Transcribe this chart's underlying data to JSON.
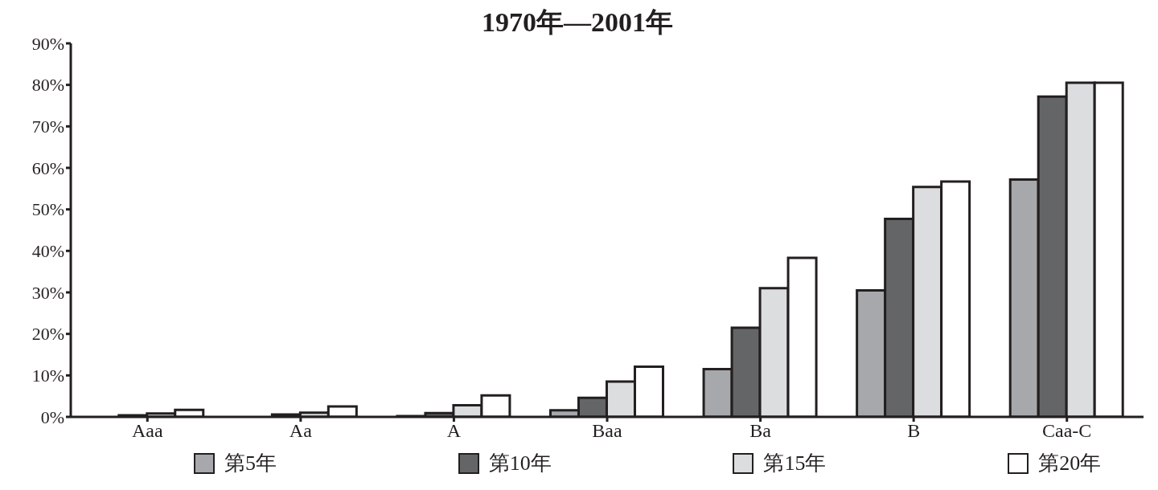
{
  "chart_data": {
    "type": "bar",
    "title": "1970年—2001年",
    "categories": [
      "Aaa",
      "Aa",
      "A",
      "Baa",
      "Ba",
      "B",
      "Caa-C"
    ],
    "series": [
      {
        "name": "第5年",
        "color": "#a7a8ab",
        "values": [
          null,
          null,
          0.2,
          1.6,
          11.5,
          30.5,
          57.2
        ]
      },
      {
        "name": "第10年",
        "color": "#646567",
        "values": [
          0.4,
          0.6,
          0.9,
          4.6,
          21.5,
          47.7,
          77.2
        ]
      },
      {
        "name": "第15年",
        "color": "#dcdddf",
        "values": [
          0.8,
          1.0,
          2.8,
          8.5,
          31.0,
          55.4,
          80.5
        ]
      },
      {
        "name": "第20年",
        "color": "#ffffff",
        "values": [
          1.7,
          2.5,
          5.2,
          12.1,
          38.3,
          56.7,
          80.5
        ]
      }
    ],
    "ylim": [
      0,
      90
    ],
    "yticks": [
      {
        "value": 0,
        "label": "0%"
      },
      {
        "value": 10,
        "label": "10%"
      },
      {
        "value": 20,
        "label": "20%"
      },
      {
        "value": 30,
        "label": "30%"
      },
      {
        "value": 40,
        "label": "40%"
      },
      {
        "value": 50,
        "label": "50%"
      },
      {
        "value": 60,
        "label": "60%"
      },
      {
        "value": 70,
        "label": "70%"
      },
      {
        "value": 80,
        "label": "80%"
      },
      {
        "value": 90,
        "label": "90%"
      }
    ],
    "grid": false,
    "legend": "bottom"
  }
}
